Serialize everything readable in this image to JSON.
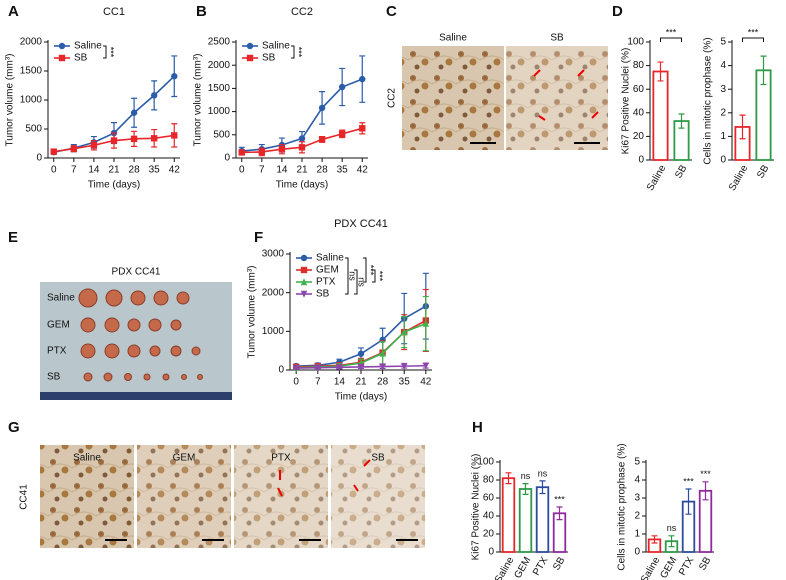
{
  "panel_labels": [
    "A",
    "B",
    "C",
    "D",
    "E",
    "F",
    "G",
    "H"
  ],
  "image_c": {
    "row_label": "CC2",
    "columns": [
      "Saline",
      "SB"
    ]
  },
  "image_e": {
    "title": "PDX CC41",
    "rows": [
      "Saline",
      "GEM",
      "PTX",
      "SB"
    ]
  },
  "image_g": {
    "row_label": "CC41",
    "columns": [
      "Saline",
      "GEM",
      "PTX",
      "SB"
    ]
  },
  "chart_data": [
    {
      "type": "line",
      "title": "CC1",
      "x_label": "Time (days)",
      "y_label": "Tumor volume (mm³)",
      "x": [
        0,
        7,
        14,
        21,
        28,
        35,
        42
      ],
      "xlim": [
        -2,
        44
      ],
      "xticks": [
        0,
        7,
        14,
        21,
        28,
        35,
        42
      ],
      "ylim": [
        0,
        2000
      ],
      "yticks": [
        0,
        500,
        1000,
        1500,
        2000
      ],
      "series": [
        {
          "name": "Saline",
          "color": "#2b5caa",
          "marker": "circle",
          "values": [
            100,
            170,
            270,
            430,
            780,
            1080,
            1410
          ],
          "errors": [
            30,
            60,
            100,
            180,
            250,
            250,
            350
          ]
        },
        {
          "name": "SB",
          "color": "#e8262a",
          "marker": "square",
          "values": [
            110,
            160,
            220,
            300,
            330,
            340,
            390
          ],
          "errors": [
            30,
            50,
            80,
            130,
            130,
            150,
            200
          ]
        }
      ],
      "annotations": [
        "***"
      ]
    },
    {
      "type": "line",
      "title": "CC2",
      "x_label": "Time (days)",
      "y_label": "Tumor volume (mm³)",
      "x": [
        0,
        7,
        14,
        21,
        28,
        35,
        42
      ],
      "xlim": [
        -2,
        44
      ],
      "xticks": [
        0,
        7,
        14,
        21,
        28,
        35,
        42
      ],
      "ylim": [
        0,
        2500
      ],
      "yticks": [
        0,
        500,
        1000,
        1500,
        2000,
        2500
      ],
      "series": [
        {
          "name": "Saline",
          "color": "#2b5caa",
          "marker": "circle",
          "values": [
            150,
            190,
            280,
            420,
            1080,
            1530,
            1700
          ],
          "errors": [
            80,
            100,
            150,
            150,
            350,
            400,
            500
          ]
        },
        {
          "name": "SB",
          "color": "#e8262a",
          "marker": "square",
          "values": [
            120,
            130,
            190,
            230,
            400,
            520,
            640
          ],
          "errors": [
            50,
            80,
            100,
            120,
            60,
            80,
            120
          ]
        }
      ],
      "annotations": [
        "***"
      ]
    },
    {
      "type": "bar",
      "y_label": "Ki67 Positive Nuclei (%)",
      "categories": [
        "Saline",
        "SB"
      ],
      "values": [
        75,
        33
      ],
      "errors": [
        8,
        6
      ],
      "colors": [
        "#e8262a",
        "#2e9a47"
      ],
      "ylim": [
        0,
        100
      ],
      "yticks": [
        0,
        20,
        40,
        60,
        80,
        100
      ],
      "annotation": "***"
    },
    {
      "type": "bar",
      "y_label": "Cells in mitotic prophase (%)",
      "categories": [
        "Saline",
        "SB"
      ],
      "values": [
        1.4,
        3.8
      ],
      "errors": [
        0.5,
        0.6
      ],
      "colors": [
        "#e8262a",
        "#2e9a47"
      ],
      "ylim": [
        0,
        5
      ],
      "yticks": [
        0,
        1,
        2,
        3,
        4,
        5
      ],
      "annotation": "***"
    },
    {
      "type": "line",
      "title": "PDX CC41",
      "x_label": "Time (days)",
      "y_label": "Tumor volume (mm³)",
      "x": [
        0,
        7,
        14,
        21,
        28,
        35,
        42
      ],
      "xlim": [
        -2,
        44
      ],
      "xticks": [
        0,
        7,
        14,
        21,
        28,
        35,
        42
      ],
      "ylim": [
        0,
        3000
      ],
      "yticks": [
        0,
        1000,
        2000,
        3000
      ],
      "series": [
        {
          "name": "Saline",
          "color": "#2b5caa",
          "marker": "circle",
          "values": [
            100,
            120,
            200,
            420,
            780,
            1330,
            1650
          ],
          "errors": [
            50,
            60,
            80,
            150,
            300,
            650,
            850
          ]
        },
        {
          "name": "GEM",
          "color": "#d9302c",
          "marker": "square",
          "values": [
            80,
            100,
            120,
            200,
            450,
            980,
            1280
          ],
          "errors": [
            60,
            50,
            60,
            100,
            300,
            450,
            800
          ]
        },
        {
          "name": "PTX",
          "color": "#3cb44b",
          "marker": "triangle",
          "values": [
            60,
            80,
            100,
            180,
            430,
            980,
            1200
          ],
          "errors": [
            40,
            50,
            60,
            100,
            300,
            400,
            700
          ]
        },
        {
          "name": "SB",
          "color": "#8e44ad",
          "marker": "triangle-down",
          "values": [
            50,
            60,
            70,
            80,
            90,
            100,
            110
          ],
          "errors": [
            30,
            40,
            40,
            40,
            50,
            50,
            60
          ]
        }
      ],
      "annotations": [
        "ns",
        "ns",
        "***",
        "***"
      ]
    },
    {
      "type": "bar",
      "y_label": "Ki67 Positive Nuclei (%)",
      "categories": [
        "Saline",
        "GEM",
        "PTX",
        "SB"
      ],
      "values": [
        82,
        70,
        72,
        43
      ],
      "errors": [
        6,
        6,
        7,
        7
      ],
      "colors": [
        "#e8262a",
        "#2e9a47",
        "#2b4ba0",
        "#8e2a9c"
      ],
      "ylim": [
        0,
        100
      ],
      "yticks": [
        0,
        20,
        40,
        60,
        80,
        100
      ],
      "annotations": [
        null,
        "ns",
        "ns",
        "***"
      ]
    },
    {
      "type": "bar",
      "y_label": "Cells in mitotic prophase (%)",
      "categories": [
        "Saline",
        "GEM",
        "PTX",
        "SB"
      ],
      "values": [
        0.7,
        0.6,
        2.8,
        3.4
      ],
      "errors": [
        0.2,
        0.3,
        0.7,
        0.5
      ],
      "colors": [
        "#e8262a",
        "#2e9a47",
        "#2b4ba0",
        "#8e2a9c"
      ],
      "ylim": [
        0,
        5
      ],
      "yticks": [
        0,
        1,
        2,
        3,
        4,
        5
      ],
      "annotations": [
        null,
        "ns",
        "***",
        "***"
      ]
    }
  ]
}
